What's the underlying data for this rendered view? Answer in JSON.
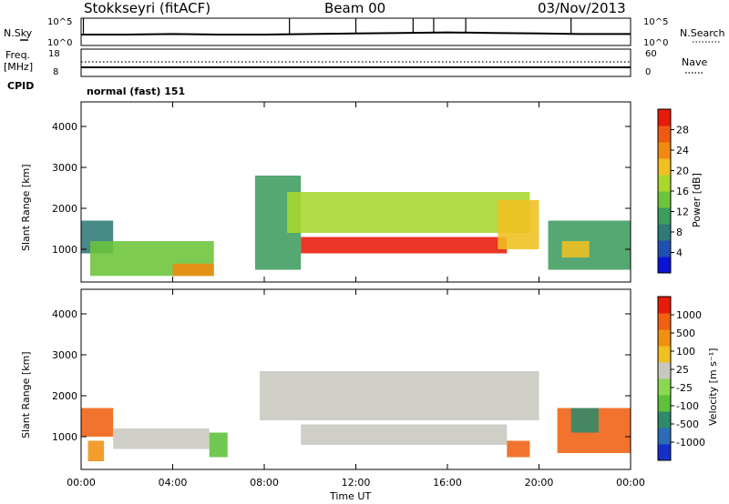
{
  "header": {
    "station": "Stokkseyri (fitACF)",
    "beam": "Beam 00",
    "date": "03/Nov/2013"
  },
  "left_labels": {
    "nsky": "N.Sky",
    "freq": "Freq.",
    "freq_unit": "[MHz]",
    "cpid": "CPID"
  },
  "right_labels": {
    "nsearch": "N.Search",
    "nave": "Nave"
  },
  "mode_text": "normal (fast) 151",
  "colors": {
    "power": [
      "#0a14d6",
      "#1f4fb0",
      "#2e7a78",
      "#3d9c5e",
      "#6cc43a",
      "#a8d82c",
      "#f0c020",
      "#f08a10",
      "#f05a10",
      "#e81a0a"
    ],
    "velocity": [
      "#1530c8",
      "#2a6cb8",
      "#2e8a6a",
      "#5cc03a",
      "#8ad850",
      "#c8c8c0",
      "#f0c020",
      "#f09010",
      "#f06010",
      "#e81a0a"
    ]
  },
  "chart_data": [
    {
      "type": "line",
      "panel": "noise",
      "xlim": [
        0,
        24
      ],
      "y_ticks_left": [
        "10^5",
        "10^0"
      ],
      "y_ticks_right": [
        "10^5",
        "10^0"
      ],
      "series": [
        {
          "name": "N.Sky",
          "x": [
            0,
            2,
            4,
            6,
            8,
            10,
            12,
            14,
            16,
            18,
            20,
            22,
            24
          ],
          "y": [
            2.0,
            2.0,
            2.1,
            2.0,
            2.0,
            2.1,
            2.2,
            2.3,
            2.4,
            2.3,
            2.2,
            2.1,
            2.1
          ]
        }
      ]
    },
    {
      "type": "line",
      "panel": "frequency",
      "xlim": [
        0,
        24
      ],
      "y_ticks_left": [
        "18",
        "8"
      ],
      "y_ticks_right": [
        "60",
        "0"
      ],
      "series": [
        {
          "name": "Freq.",
          "x": [
            0,
            24
          ],
          "y": [
            8.8,
            8.8
          ]
        },
        {
          "name": "Nave",
          "x": [
            0,
            24
          ],
          "y": [
            16,
            16
          ]
        }
      ]
    },
    {
      "type": "heatmap",
      "panel": "power",
      "xlabel": "Time UT",
      "ylabel": "Slant Range [km]",
      "xlim": [
        0,
        24
      ],
      "ylim": [
        200,
        4600
      ],
      "x_ticks": [
        "00:00",
        "04:00",
        "08:00",
        "12:00",
        "16:00",
        "20:00",
        "00:00"
      ],
      "y_ticks": [
        "1000",
        "2000",
        "3000",
        "4000"
      ],
      "colorbar_label": "Power [dB]",
      "colorbar_ticks": [
        "28",
        "24",
        "20",
        "16",
        "12",
        "8",
        "4"
      ],
      "regions": [
        {
          "t0": 0.0,
          "t1": 1.4,
          "r0": 900,
          "r1": 1700,
          "level": 2
        },
        {
          "t0": 0.4,
          "t1": 5.8,
          "r0": 350,
          "r1": 1200,
          "level": 4
        },
        {
          "t0": 4.0,
          "t1": 5.8,
          "r0": 350,
          "r1": 650,
          "level": 7
        },
        {
          "t0": 7.6,
          "t1": 9.6,
          "r0": 500,
          "r1": 2800,
          "level": 3
        },
        {
          "t0": 9.0,
          "t1": 19.6,
          "r0": 1400,
          "r1": 2400,
          "level": 5
        },
        {
          "t0": 9.6,
          "t1": 18.6,
          "r0": 900,
          "r1": 1300,
          "level": 9
        },
        {
          "t0": 18.2,
          "t1": 20.0,
          "r0": 1000,
          "r1": 2200,
          "level": 6
        },
        {
          "t0": 20.4,
          "t1": 24.0,
          "r0": 500,
          "r1": 1700,
          "level": 3
        },
        {
          "t0": 21.0,
          "t1": 22.2,
          "r0": 800,
          "r1": 1200,
          "level": 6
        }
      ]
    },
    {
      "type": "heatmap",
      "panel": "velocity",
      "xlabel": "Time UT",
      "ylabel": "Slant Range [km]",
      "xlim": [
        0,
        24
      ],
      "ylim": [
        200,
        4600
      ],
      "x_ticks": [
        "00:00",
        "04:00",
        "08:00",
        "12:00",
        "16:00",
        "20:00",
        "00:00"
      ],
      "y_ticks": [
        "1000",
        "2000",
        "3000",
        "4000"
      ],
      "colorbar_label": "Velocity [m s⁻¹]",
      "colorbar_ticks": [
        "1000",
        "500",
        "100",
        "25",
        "-25",
        "-100",
        "-500",
        "-1000"
      ],
      "regions": [
        {
          "t0": 0.0,
          "t1": 1.4,
          "r0": 1000,
          "r1": 1700,
          "level": 8
        },
        {
          "t0": 0.3,
          "t1": 1.0,
          "r0": 400,
          "r1": 900,
          "level": 7
        },
        {
          "t0": 1.4,
          "t1": 5.6,
          "r0": 700,
          "r1": 1200,
          "level": 5
        },
        {
          "t0": 5.6,
          "t1": 6.4,
          "r0": 500,
          "r1": 1100,
          "level": 3
        },
        {
          "t0": 7.8,
          "t1": 20.0,
          "r0": 1400,
          "r1": 2600,
          "level": 5
        },
        {
          "t0": 9.6,
          "t1": 18.6,
          "r0": 800,
          "r1": 1300,
          "level": 5
        },
        {
          "t0": 18.6,
          "t1": 19.6,
          "r0": 500,
          "r1": 900,
          "level": 8
        },
        {
          "t0": 20.8,
          "t1": 24.0,
          "r0": 600,
          "r1": 1700,
          "level": 8
        },
        {
          "t0": 21.4,
          "t1": 22.6,
          "r0": 1100,
          "r1": 1700,
          "level": 2
        }
      ]
    }
  ]
}
